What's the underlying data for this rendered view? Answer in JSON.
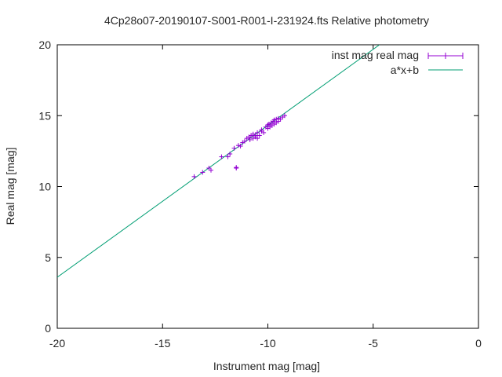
{
  "chart_data": {
    "type": "scatter",
    "title": "4Cp28o07-20190107-S001-R001-I-231924.fts Relative photometry",
    "xlabel": "Instrument mag [mag]",
    "ylabel": "Real mag [mag]",
    "xlim": [
      -20,
      0
    ],
    "ylim": [
      0,
      20
    ],
    "xticks": [
      -20,
      -15,
      -10,
      -5,
      0
    ],
    "yticks": [
      0,
      5,
      10,
      15,
      20
    ],
    "xtick_labels": [
      "-20",
      "-15",
      "-10",
      "-5",
      "0"
    ],
    "ytick_labels": [
      "0",
      "5",
      "10",
      "15",
      "20"
    ],
    "grid": false,
    "legend_position": "top-right",
    "colors": {
      "points": "#9400d3",
      "fit": "#009e73",
      "axes": "#000000"
    },
    "series": [
      {
        "name": "inst mag real mag",
        "kind": "points",
        "points": [
          [
            -13.5,
            10.7
          ],
          [
            -13.1,
            11.0
          ],
          [
            -12.8,
            11.3
          ],
          [
            -12.7,
            11.15
          ],
          [
            -12.2,
            12.1
          ],
          [
            -11.9,
            12.1
          ],
          [
            -11.8,
            12.3
          ],
          [
            -11.6,
            12.7
          ],
          [
            -11.5,
            11.35
          ],
          [
            -11.5,
            11.3
          ],
          [
            -11.4,
            12.9
          ],
          [
            -11.3,
            12.85
          ],
          [
            -11.2,
            13.1
          ],
          [
            -11.1,
            13.2
          ],
          [
            -11.0,
            13.4
          ],
          [
            -10.9,
            13.5
          ],
          [
            -10.85,
            13.3
          ],
          [
            -10.8,
            13.6
          ],
          [
            -10.7,
            13.4
          ],
          [
            -10.7,
            13.7
          ],
          [
            -10.6,
            13.5
          ],
          [
            -10.6,
            13.6
          ],
          [
            -10.5,
            13.4
          ],
          [
            -10.5,
            13.8
          ],
          [
            -10.4,
            13.6
          ],
          [
            -10.3,
            13.9
          ],
          [
            -10.3,
            14.0
          ],
          [
            -10.2,
            13.8
          ],
          [
            -10.1,
            14.2
          ],
          [
            -10.0,
            14.1
          ],
          [
            -10.0,
            14.35
          ],
          [
            -9.95,
            14.4
          ],
          [
            -9.9,
            14.2
          ],
          [
            -9.85,
            14.5
          ],
          [
            -9.8,
            14.3
          ],
          [
            -9.75,
            14.6
          ],
          [
            -9.7,
            14.4
          ],
          [
            -9.7,
            14.7
          ],
          [
            -9.6,
            14.5
          ],
          [
            -9.6,
            14.75
          ],
          [
            -9.5,
            14.6
          ],
          [
            -9.5,
            14.8
          ],
          [
            -9.4,
            14.75
          ],
          [
            -9.3,
            14.9
          ],
          [
            -9.2,
            15.0
          ]
        ]
      },
      {
        "name": "a*x+b",
        "kind": "line",
        "x": [
          -20,
          -4.7
        ],
        "y": [
          3.6,
          20
        ]
      }
    ]
  }
}
